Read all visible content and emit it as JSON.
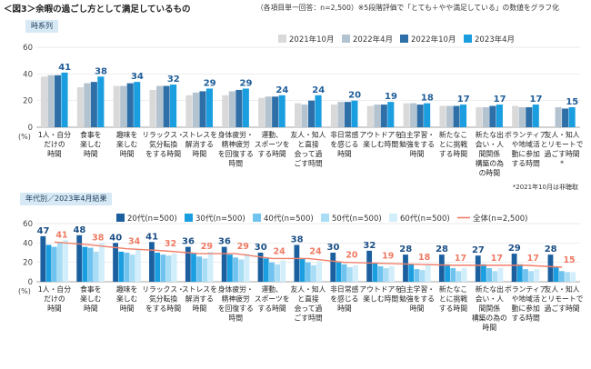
{
  "title": "＜図3＞余暇の過ごし方として満足しているもの",
  "subtitle": "（各項目単一回答：n=2,500）※5段階評価で「とても＋やや満足している」の数値をグラフ化",
  "note": "*2021年10月は非聴取",
  "chart_data": [
    {
      "type": "bar",
      "section_label": "時系列",
      "ylabel": "(%)",
      "ylim": [
        0,
        60
      ],
      "yticks": [
        0,
        20,
        40,
        60
      ],
      "grid": true,
      "legend_position": "top-right",
      "categories": [
        [
          "1人・自分",
          "だけの",
          "時間"
        ],
        [
          "食事を",
          "楽しむ",
          "時間"
        ],
        [
          "趣味を",
          "楽しむ",
          "時間"
        ],
        [
          "リラックス・",
          "気分転換",
          "をする時間"
        ],
        [
          "ストレスを",
          "解消する",
          "時間"
        ],
        [
          "身体疲労・",
          "精神疲労",
          "を回復する",
          "時間"
        ],
        [
          "運動、",
          "スポーツを",
          "する時間"
        ],
        [
          "友人・知人",
          "と直接",
          "会って過",
          "ごす時間"
        ],
        [
          "非日常感",
          "を感じる",
          "時間"
        ],
        [
          "アウトドアを",
          "楽しむ時間"
        ],
        [
          "自主学習・",
          "勉強をする",
          "時間"
        ],
        [
          "新たなこ",
          "とに挑戦",
          "する時間"
        ],
        [
          "新たな出",
          "会い・人",
          "間関係",
          "構築の為",
          "の時間"
        ],
        [
          "ボランティア",
          "や地域活",
          "動に参加",
          "する時間"
        ],
        [
          "友人・知人",
          "とリモートで",
          "過ごす時間",
          "*"
        ]
      ],
      "series": [
        {
          "name": "2021年10月",
          "color": "#d9d9d9",
          "values": [
            38,
            30,
            31,
            28,
            24,
            24,
            22,
            18,
            17,
            16,
            18,
            16,
            15,
            16,
            null
          ]
        },
        {
          "name": "2022年4月",
          "color": "#b4c3d0",
          "values": [
            39,
            33,
            31,
            31,
            26,
            27,
            23,
            17,
            19,
            17,
            18,
            16,
            15,
            15,
            15
          ]
        },
        {
          "name": "2022年10月",
          "color": "#2e6fa8",
          "values": [
            39,
            34,
            33,
            31,
            27,
            28,
            23,
            20,
            19,
            17,
            17,
            16,
            16,
            15,
            14
          ]
        },
        {
          "name": "2023年4月",
          "color": "#1a9ee0",
          "values": [
            41,
            38,
            34,
            32,
            29,
            29,
            24,
            24,
            20,
            19,
            18,
            17,
            17,
            17,
            15
          ]
        }
      ],
      "data_labels": [
        41,
        38,
        34,
        32,
        29,
        29,
        24,
        24,
        20,
        19,
        18,
        17,
        17,
        17,
        15
      ]
    },
    {
      "type": "bar",
      "section_label": "年代別／2023年4月結果",
      "ylabel": "(%)",
      "ylim": [
        0,
        60
      ],
      "yticks": [
        0,
        20,
        40,
        60
      ],
      "grid": true,
      "legend_position": "top",
      "categories": [
        [
          "1人・自分",
          "だけの",
          "時間"
        ],
        [
          "食事を",
          "楽しむ",
          "時間"
        ],
        [
          "趣味を",
          "楽しむ",
          "時間"
        ],
        [
          "リラックス・",
          "気分転換",
          "をする時間"
        ],
        [
          "ストレスを",
          "解消する",
          "時間"
        ],
        [
          "身体疲労・",
          "精神疲労",
          "を回復する",
          "時間"
        ],
        [
          "運動、",
          "スポーツを",
          "する時間"
        ],
        [
          "友人・知人",
          "と直接",
          "会って過",
          "ごす時間"
        ],
        [
          "非日常感",
          "を感じる",
          "時間"
        ],
        [
          "アウトドアを",
          "楽しむ時間"
        ],
        [
          "自主学習・",
          "勉強をする",
          "時間"
        ],
        [
          "新たなこ",
          "とに挑戦",
          "する時間"
        ],
        [
          "新たな出",
          "会い・人",
          "間関係",
          "構築の為の",
          "時間"
        ],
        [
          "ボランティア",
          "や地域活",
          "動に参加",
          "する時間"
        ],
        [
          "友人・知人",
          "とリモートで",
          "過ごす時間"
        ]
      ],
      "series": [
        {
          "name": "20代(n=500)",
          "color": "#1b5f9e",
          "values": [
            47,
            48,
            40,
            41,
            36,
            36,
            30,
            38,
            30,
            32,
            28,
            28,
            27,
            29,
            28
          ]
        },
        {
          "name": "30代(n=500)",
          "color": "#1a9ee0",
          "values": [
            38,
            36,
            31,
            30,
            29,
            28,
            24,
            24,
            20,
            19,
            18,
            18,
            18,
            18,
            15
          ]
        },
        {
          "name": "40代(n=500)",
          "color": "#6fc3ee",
          "values": [
            36,
            35,
            30,
            28,
            26,
            25,
            20,
            20,
            18,
            16,
            13,
            14,
            14,
            13,
            11
          ]
        },
        {
          "name": "50代(n=500)",
          "color": "#a9dcf5",
          "values": [
            41,
            31,
            28,
            27,
            24,
            23,
            18,
            17,
            15,
            14,
            12,
            11,
            11,
            11,
            10
          ]
        },
        {
          "name": "60代(n=500)",
          "color": "#d3eefb",
          "values": [
            43,
            40,
            33,
            29,
            31,
            29,
            22,
            21,
            17,
            16,
            17,
            14,
            14,
            13,
            10
          ]
        }
      ],
      "line_series": {
        "name": "全体(n=2,500)",
        "color": "#f07f6a",
        "values": [
          41,
          38,
          34,
          32,
          29,
          29,
          24,
          24,
          20,
          19,
          18,
          17,
          17,
          17,
          15
        ]
      },
      "data_labels_20s": [
        47,
        48,
        40,
        41,
        36,
        36,
        30,
        38,
        30,
        32,
        28,
        28,
        27,
        29,
        28
      ]
    }
  ]
}
